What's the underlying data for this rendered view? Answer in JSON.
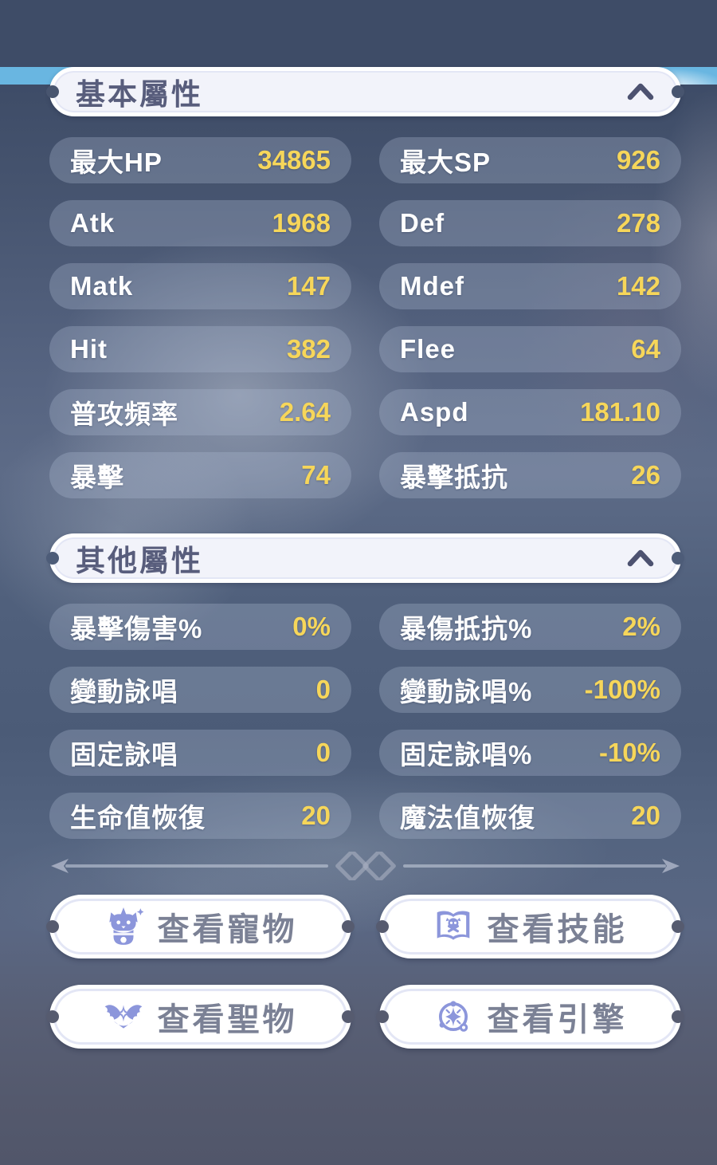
{
  "theme": {
    "sky_color": "#69b6e1",
    "accent_value_color": "#f6d65a",
    "stat_label_color": "#ffffff",
    "header_text_color": "#585d7c",
    "button_text_color": "#7b8195",
    "button_icon_color": "#8c96db"
  },
  "sections": [
    {
      "title": "基本屬性",
      "chevron_icon": "chevron-up-icon",
      "stats": [
        {
          "label": "最大HP",
          "value": "34865"
        },
        {
          "label": "最大SP",
          "value": "926"
        },
        {
          "label": "Atk",
          "value": "1968"
        },
        {
          "label": "Def",
          "value": "278"
        },
        {
          "label": "Matk",
          "value": "147"
        },
        {
          "label": "Mdef",
          "value": "142"
        },
        {
          "label": "Hit",
          "value": "382"
        },
        {
          "label": "Flee",
          "value": "64"
        },
        {
          "label": "普攻頻率",
          "value": "2.64"
        },
        {
          "label": "Aspd",
          "value": "181.10"
        },
        {
          "label": "暴擊",
          "value": "74"
        },
        {
          "label": "暴擊抵抗",
          "value": "26"
        }
      ]
    },
    {
      "title": "其他屬性",
      "chevron_icon": "chevron-up-icon",
      "stats": [
        {
          "label": "暴擊傷害%",
          "value": "0%"
        },
        {
          "label": "暴傷抵抗%",
          "value": "2%"
        },
        {
          "label": "變動詠唱",
          "value": "0"
        },
        {
          "label": "變動詠唱%",
          "value": "-100%"
        },
        {
          "label": "固定詠唱",
          "value": "0"
        },
        {
          "label": "固定詠唱%",
          "value": "-10%"
        },
        {
          "label": "生命值恢復",
          "value": "20"
        },
        {
          "label": "魔法值恢復",
          "value": "20"
        }
      ]
    }
  ],
  "divider": {
    "icon": "chain-link-icon"
  },
  "buttons": [
    {
      "label": "查看寵物",
      "icon": "pet-icon"
    },
    {
      "label": "查看技能",
      "icon": "skill-book-icon"
    },
    {
      "label": "查看聖物",
      "icon": "relic-wings-icon"
    },
    {
      "label": "查看引擎",
      "icon": "engine-icon"
    }
  ]
}
